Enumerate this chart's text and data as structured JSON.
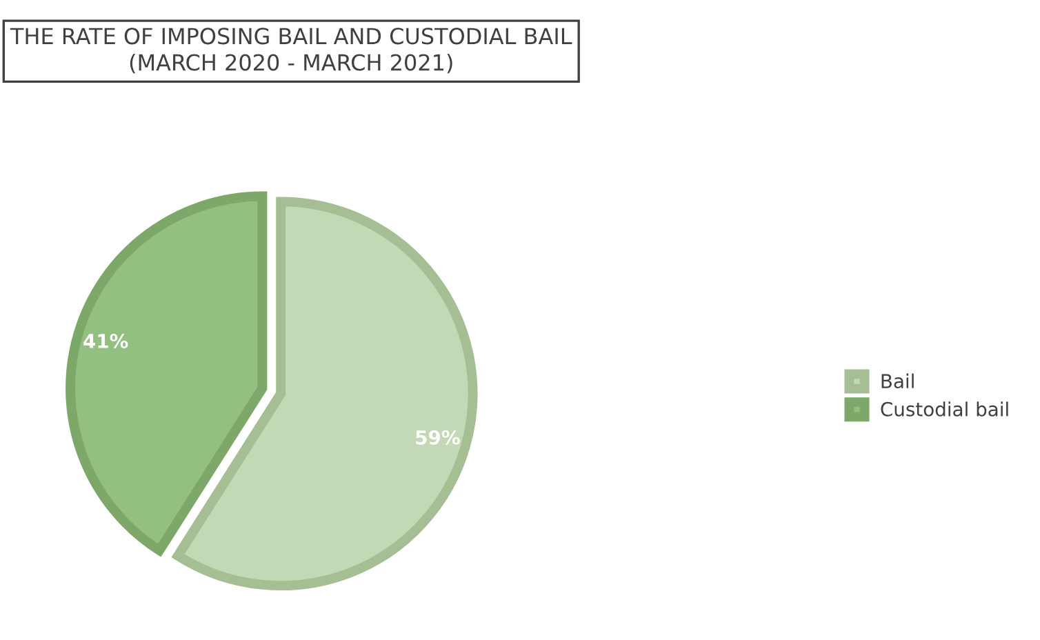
{
  "chart_data": {
    "type": "pie",
    "title": "THE RATE OF IMPOSING BAIL AND CUSTODIAL BAIL\n(MARCH 2020 - MARCH 2021)",
    "categories": [
      "Bail",
      "Custodial bail"
    ],
    "values": [
      59,
      41
    ],
    "colors": [
      "#c3d8b5",
      "#93bf80"
    ],
    "value_labels": [
      "59%",
      "41%"
    ],
    "legend": "right"
  }
}
